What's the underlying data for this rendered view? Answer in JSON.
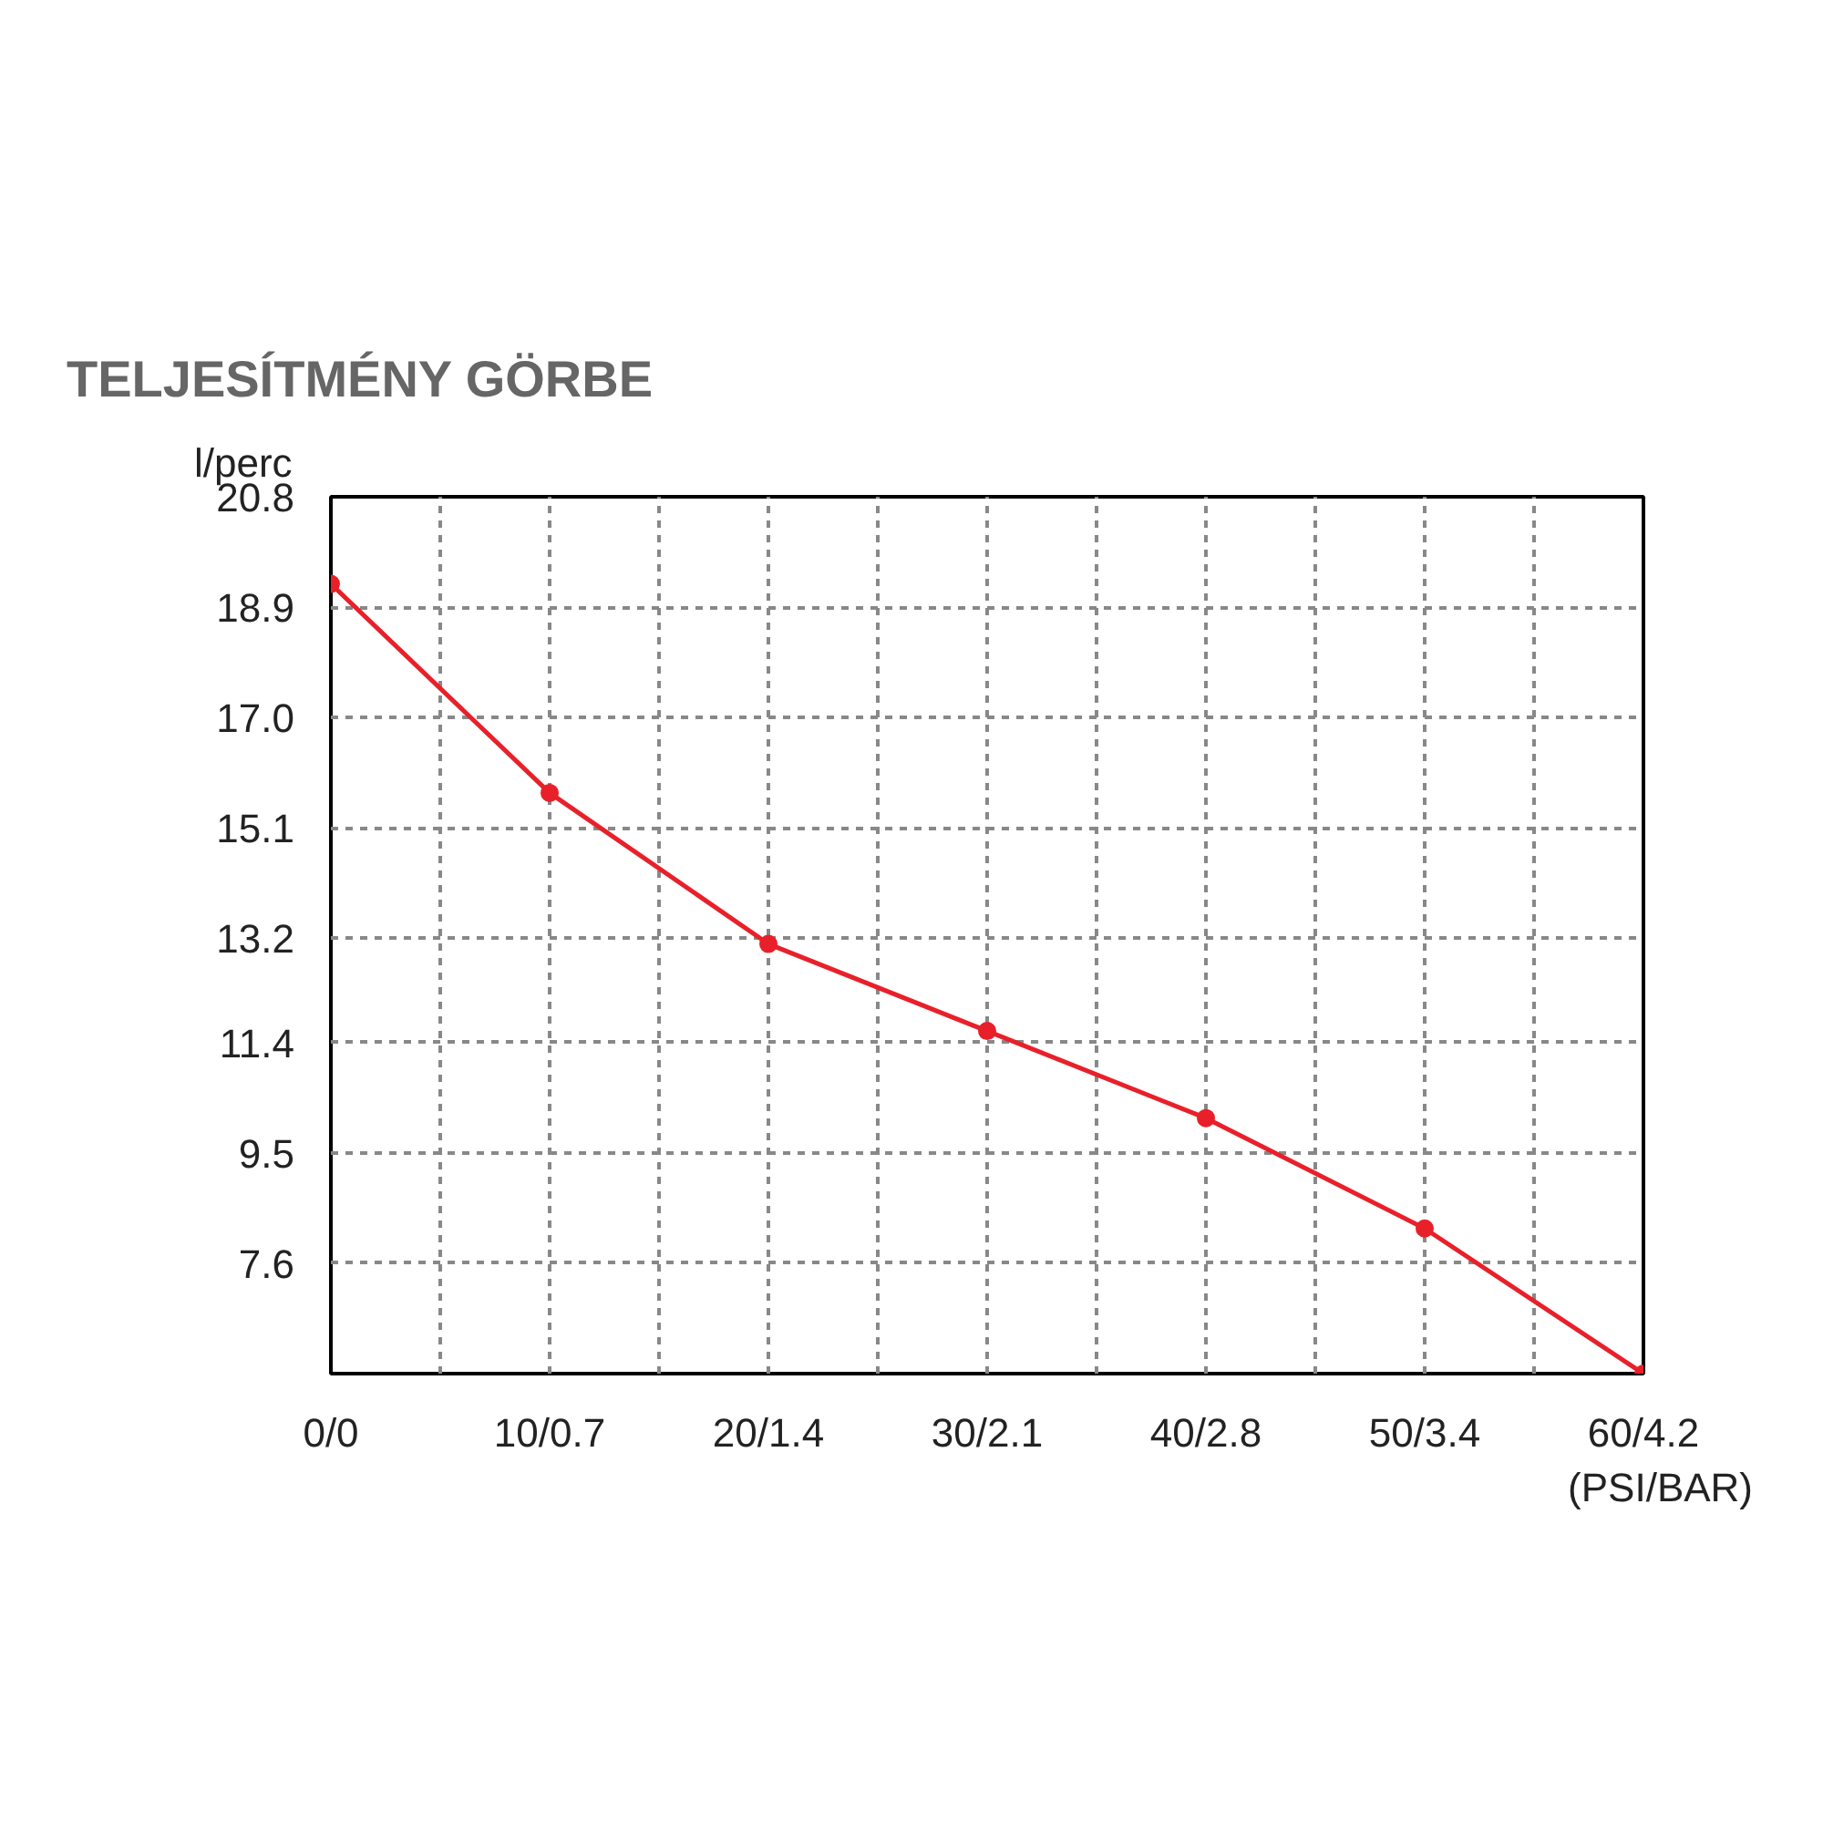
{
  "chart_data": {
    "type": "line",
    "title": "TELJESÍTMÉNY GÖRBE",
    "ylabel": "l/perc",
    "xlabel": "(PSI/BAR)",
    "categories": [
      "0/0",
      "10/0.7",
      "20/1.4",
      "30/2.1",
      "40/2.8",
      "50/3.4",
      "60/4.2"
    ],
    "series": [
      {
        "color": "#e8202a",
        "values": [
          19.3,
          15.7,
          13.1,
          11.6,
          10.1,
          8.2,
          5.7
        ]
      }
    ],
    "marker": "circle",
    "line_style": "solid",
    "grid": true,
    "ylim": [
      5.7,
      20.8
    ],
    "yticks": [
      7.6,
      9.5,
      11.4,
      13.2,
      15.1,
      {
        "value": 17.0,
        "label": "17.0"
      },
      18.9,
      20.8
    ]
  }
}
